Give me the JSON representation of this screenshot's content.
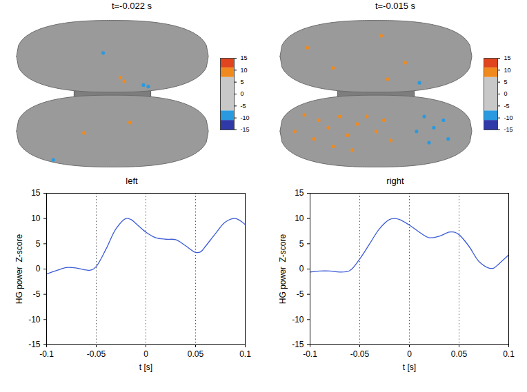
{
  "chart_data": [
    {
      "type": "brain_map",
      "title": "t=-0.022 s",
      "sites": [
        {
          "x": 0.08,
          "y": 0.22,
          "z": 9
        },
        {
          "x": 0.12,
          "y": 0.17,
          "z": 9
        },
        {
          "x": 0.32,
          "y": 0.12,
          "z": -9
        },
        {
          "x": 0.37,
          "y": 0.1,
          "z": -9
        },
        {
          "x": -0.1,
          "y": 0.55,
          "z": -9
        },
        {
          "x": 0.18,
          "y": -0.38,
          "z": 9
        },
        {
          "x": -0.62,
          "y": -0.88,
          "z": -9
        },
        {
          "x": -0.3,
          "y": -0.52,
          "z": 9
        }
      ],
      "colorbar": {
        "lim": [
          -15,
          15
        ],
        "ticks": [
          -15,
          -10,
          -5,
          0,
          5,
          10,
          15
        ],
        "bands": [
          {
            "from": -15,
            "to": -11,
            "color": "#2f3aa8"
          },
          {
            "from": -11,
            "to": -7,
            "color": "#2a9ae0"
          },
          {
            "from": -7,
            "to": 7,
            "color": "#c8c8c8"
          },
          {
            "from": 7,
            "to": 11,
            "color": "#f08a1e"
          },
          {
            "from": 11,
            "to": 15,
            "color": "#e0451f"
          }
        ]
      }
    },
    {
      "type": "brain_map",
      "title": "t=-0.015 s",
      "sites": [
        {
          "x": -0.72,
          "y": 0.62,
          "z": 9
        },
        {
          "x": -0.45,
          "y": 0.35,
          "z": 9
        },
        {
          "x": 0.05,
          "y": 0.78,
          "z": 9
        },
        {
          "x": 0.3,
          "y": 0.42,
          "z": 9
        },
        {
          "x": 0.12,
          "y": 0.2,
          "z": 9
        },
        {
          "x": 0.45,
          "y": 0.15,
          "z": -9
        },
        {
          "x": -0.75,
          "y": -0.28,
          "z": 9
        },
        {
          "x": -0.6,
          "y": -0.35,
          "z": 9
        },
        {
          "x": -0.5,
          "y": -0.45,
          "z": 9
        },
        {
          "x": -0.38,
          "y": -0.3,
          "z": 9
        },
        {
          "x": -0.3,
          "y": -0.55,
          "z": 9
        },
        {
          "x": -0.65,
          "y": -0.6,
          "z": 9
        },
        {
          "x": -0.45,
          "y": -0.7,
          "z": 9
        },
        {
          "x": -0.2,
          "y": -0.4,
          "z": 9
        },
        {
          "x": -0.1,
          "y": -0.3,
          "z": 9
        },
        {
          "x": 0.0,
          "y": -0.5,
          "z": 9
        },
        {
          "x": 0.08,
          "y": -0.35,
          "z": 9
        },
        {
          "x": 0.15,
          "y": -0.62,
          "z": 9
        },
        {
          "x": -0.85,
          "y": -0.5,
          "z": 9
        },
        {
          "x": -0.25,
          "y": -0.75,
          "z": 9
        },
        {
          "x": 0.5,
          "y": -0.3,
          "z": -9
        },
        {
          "x": 0.6,
          "y": -0.45,
          "z": -9
        },
        {
          "x": 0.7,
          "y": -0.35,
          "z": -9
        },
        {
          "x": 0.55,
          "y": -0.65,
          "z": -9
        },
        {
          "x": 0.75,
          "y": -0.6,
          "z": -9
        },
        {
          "x": 0.42,
          "y": -0.5,
          "z": -9
        }
      ],
      "colorbar": {
        "lim": [
          -15,
          15
        ],
        "ticks": [
          -15,
          -10,
          -5,
          0,
          5,
          10,
          15
        ],
        "bands": [
          {
            "from": -15,
            "to": -11,
            "color": "#2f3aa8"
          },
          {
            "from": -11,
            "to": -7,
            "color": "#2a9ae0"
          },
          {
            "from": -7,
            "to": 7,
            "color": "#c8c8c8"
          },
          {
            "from": 7,
            "to": 11,
            "color": "#f08a1e"
          },
          {
            "from": 11,
            "to": 15,
            "color": "#e0451f"
          }
        ]
      }
    },
    {
      "type": "line",
      "title": "left",
      "xlabel": "t [s]",
      "ylabel": "HG power  Z-score",
      "color": "#3b5bd6",
      "grid": "x",
      "x": [
        -0.1,
        -0.09,
        -0.08,
        -0.07,
        -0.06,
        -0.055,
        -0.05,
        -0.04,
        -0.03,
        -0.02,
        -0.015,
        -0.01,
        0,
        0.01,
        0.02,
        0.03,
        0.04,
        0.05,
        0.055,
        0.06,
        0.07,
        0.08,
        0.09,
        0.1
      ],
      "values": [
        -1,
        -0.3,
        0.3,
        0.2,
        -0.2,
        -0.2,
        0.5,
        4,
        8,
        10,
        9.8,
        9,
        7.3,
        6.2,
        5.9,
        5.8,
        4.6,
        3.3,
        3.4,
        4.5,
        7,
        9.3,
        10,
        8.8
      ],
      "xlim": [
        -0.1,
        0.1
      ],
      "xticks": [
        -0.1,
        -0.05,
        0,
        0.05,
        0.1
      ],
      "ylim": [
        -15,
        15
      ],
      "yticks": [
        -15,
        -10,
        -5,
        0,
        5,
        10,
        15
      ]
    },
    {
      "type": "line",
      "title": "right",
      "xlabel": "t [s]",
      "ylabel": "HG power  Z-score",
      "color": "#3b5bd6",
      "grid": "x",
      "x": [
        -0.1,
        -0.09,
        -0.08,
        -0.07,
        -0.06,
        -0.05,
        -0.04,
        -0.03,
        -0.02,
        -0.015,
        -0.01,
        0,
        0.01,
        0.02,
        0.03,
        0.04,
        0.045,
        0.05,
        0.06,
        0.07,
        0.08,
        0.085,
        0.09,
        0.1
      ],
      "values": [
        -0.6,
        -0.4,
        -0.4,
        -0.6,
        -0.3,
        2,
        5,
        8,
        9.8,
        10,
        9.8,
        8.7,
        7.3,
        6.2,
        6.5,
        7.3,
        7.3,
        6.8,
        4.5,
        1.5,
        0.2,
        0.2,
        1,
        2.8
      ],
      "xlim": [
        -0.1,
        0.1
      ],
      "xticks": [
        -0.1,
        -0.05,
        0,
        0.05,
        0.1
      ],
      "ylim": [
        -15,
        15
      ],
      "yticks": [
        -15,
        -10,
        -5,
        0,
        5,
        10,
        15
      ]
    }
  ]
}
